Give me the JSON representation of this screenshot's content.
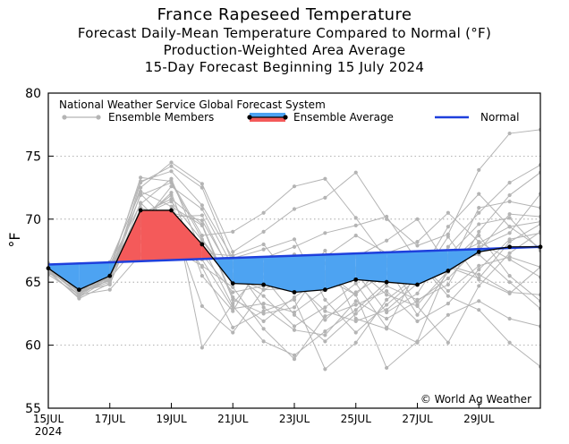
{
  "titles": {
    "line1": "France Rapeseed Temperature",
    "line2": "Forecast Daily-Mean Temperature Compared to Normal (°F)",
    "line3": "Production-Weighted Area Average",
    "line4": "15-Day Forecast Beginning 15 July 2024"
  },
  "legend": {
    "source": "National Weather Service Global Forecast System",
    "members": "Ensemble Members",
    "average": "Ensemble Average",
    "normal": "Normal"
  },
  "credit": "© World Ag Weather",
  "colors": {
    "members": "#b4b4b4",
    "above": "#f45a5a",
    "below": "#4da3f2",
    "normal": "#1e3fdc",
    "average": "#000000"
  },
  "chart_data": {
    "type": "line",
    "ylabel": "°F",
    "ylim": [
      55,
      80
    ],
    "yticks": [
      55,
      60,
      65,
      70,
      75,
      80
    ],
    "xlim": [
      0,
      16
    ],
    "xticks": [
      {
        "x": 0,
        "label": "15JUL",
        "sub": "2024"
      },
      {
        "x": 2,
        "label": "17JUL",
        "sub": ""
      },
      {
        "x": 4,
        "label": "19JUL",
        "sub": ""
      },
      {
        "x": 6,
        "label": "21JUL",
        "sub": ""
      },
      {
        "x": 8,
        "label": "23JUL",
        "sub": ""
      },
      {
        "x": 10,
        "label": "25JUL",
        "sub": ""
      },
      {
        "x": 12,
        "label": "27JUL",
        "sub": ""
      },
      {
        "x": 14,
        "label": "29JUL",
        "sub": ""
      }
    ],
    "grid": true,
    "series": [
      {
        "name": "Ensemble Average",
        "x": [
          0,
          1,
          2,
          3,
          4,
          5,
          6,
          7,
          8,
          9,
          10,
          11,
          12,
          13,
          14,
          15,
          16
        ],
        "values": [
          66.1,
          64.4,
          65.5,
          70.7,
          70.7,
          68.0,
          64.9,
          64.8,
          64.2,
          64.4,
          65.2,
          65.0,
          64.8,
          65.9,
          67.4,
          67.8,
          67.8
        ]
      },
      {
        "name": "Normal",
        "x": [
          0,
          16
        ],
        "values": [
          66.4,
          67.8
        ]
      }
    ],
    "members": [
      [
        66.3,
        64.2,
        65.0,
        72.9,
        74.2,
        72.5,
        66.5,
        63.0,
        61.2,
        60.8,
        63.5,
        62.1,
        63.5,
        65.3,
        67.8,
        68.9,
        72.0
      ],
      [
        65.8,
        64.6,
        66.1,
        70.3,
        71.4,
        68.3,
        65.0,
        66.4,
        67.2,
        65.3,
        64.0,
        66.6,
        65.8,
        66.4,
        68.7,
        65.5,
        63.5
      ],
      [
        66.0,
        64.0,
        65.6,
        69.0,
        69.2,
        66.8,
        62.9,
        63.3,
        62.6,
        64.4,
        67.2,
        66.3,
        62.4,
        65.8,
        67.5,
        70.4,
        70.2
      ],
      [
        66.4,
        64.9,
        66.4,
        71.2,
        73.2,
        67.3,
        67.1,
        68.0,
        65.0,
        62.7,
        61.9,
        62.8,
        64.9,
        68.6,
        65.2,
        64.1,
        66.2
      ],
      [
        65.9,
        63.7,
        64.9,
        70.4,
        71.6,
        69.6,
        63.8,
        61.9,
        63.8,
        65.5,
        66.1,
        64.0,
        63.1,
        60.2,
        64.7,
        67.3,
        69.0
      ],
      [
        66.2,
        64.3,
        65.3,
        68.2,
        70.2,
        70.3,
        65.4,
        64.4,
        64.5,
        67.5,
        62.1,
        61.3,
        66.0,
        67.1,
        69.6,
        70.1,
        67.5
      ],
      [
        65.7,
        64.7,
        65.9,
        73.3,
        73.0,
        68.7,
        69.0,
        70.5,
        72.6,
        73.2,
        70.1,
        66.8,
        63.2,
        65.9,
        70.9,
        71.4,
        70.9
      ],
      [
        66.5,
        64.1,
        65.2,
        72.0,
        69.6,
        66.2,
        61.4,
        62.7,
        63.6,
        58.1,
        60.2,
        63.6,
        65.5,
        66.6,
        67.2,
        65.0,
        62.9
      ],
      [
        66.1,
        64.5,
        66.0,
        69.5,
        72.6,
        70.8,
        66.2,
        65.9,
        65.5,
        62.0,
        64.2,
        65.7,
        65.0,
        66.9,
        68.1,
        69.4,
        69.8
      ],
      [
        65.6,
        64.0,
        64.4,
        67.2,
        68.6,
        67.9,
        63.1,
        60.3,
        59.2,
        61.1,
        62.8,
        65.0,
        66.7,
        64.3,
        66.3,
        67.0,
        66.2
      ],
      [
        66.3,
        63.9,
        65.5,
        72.5,
        74.5,
        72.8,
        67.4,
        69.0,
        70.8,
        71.7,
        73.7,
        70.0,
        67.9,
        68.8,
        73.9,
        76.8,
        77.1
      ],
      [
        65.8,
        64.8,
        65.8,
        70.6,
        70.5,
        69.9,
        65.6,
        63.9,
        61.5,
        63.0,
        64.9,
        61.4,
        60.2,
        62.4,
        63.5,
        62.1,
        61.5
      ],
      [
        66.2,
        64.4,
        65.1,
        71.3,
        68.9,
        67.2,
        64.2,
        64.7,
        66.7,
        64.9,
        67.0,
        68.3,
        70.0,
        66.3,
        65.6,
        64.2,
        64.0
      ],
      [
        66.0,
        64.6,
        66.6,
        72.2,
        71.0,
        69.5,
        63.6,
        62.5,
        63.0,
        66.5,
        65.8,
        62.6,
        64.1,
        67.8,
        70.5,
        72.9,
        74.3
      ],
      [
        65.9,
        64.2,
        65.4,
        69.8,
        72.1,
        65.5,
        62.7,
        66.9,
        67.8,
        68.9,
        69.5,
        70.2,
        66.7,
        63.9,
        62.8,
        60.2,
        58.3
      ],
      [
        66.4,
        64.1,
        65.7,
        68.9,
        67.7,
        66.3,
        64.6,
        61.3,
        58.9,
        62.3,
        63.2,
        64.3,
        61.9,
        63.3,
        66.0,
        68.4,
        68.9
      ],
      [
        65.7,
        64.7,
        66.2,
        73.0,
        73.8,
        71.1,
        66.9,
        67.6,
        68.4,
        63.6,
        61.0,
        63.2,
        65.3,
        69.4,
        72.0,
        69.4,
        67.7
      ],
      [
        66.1,
        64.3,
        64.8,
        70.9,
        70.1,
        63.1,
        61.0,
        64.4,
        65.6,
        67.0,
        68.7,
        67.3,
        68.2,
        70.5,
        68.2,
        66.8,
        65.4
      ],
      [
        66.0,
        64.4,
        65.9,
        71.9,
        72.9,
        68.4,
        65.2,
        65.4,
        62.4,
        60.3,
        62.5,
        64.7,
        63.6,
        64.8,
        69.0,
        71.9,
        73.7
      ],
      [
        65.8,
        63.8,
        65.3,
        70.0,
        71.9,
        59.8,
        63.3,
        66.1,
        64.8,
        65.8,
        64.0,
        58.2,
        60.3,
        66.2,
        65.3,
        68.2,
        69.6
      ]
    ]
  }
}
